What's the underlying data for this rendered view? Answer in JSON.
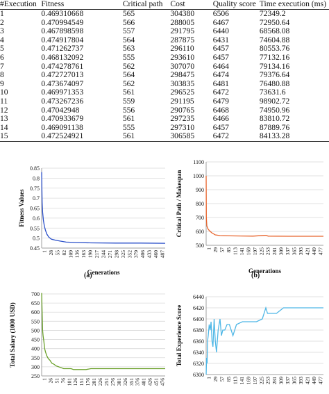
{
  "table": {
    "headers": [
      "#Execution",
      "Fitness",
      "Critical path",
      "Cost",
      "Quality score",
      "Time execution (ms)"
    ],
    "rows": [
      [
        "1",
        "0.469310668",
        "565",
        "304380",
        "6506",
        "72349.2"
      ],
      [
        "2",
        "0.470994549",
        "566",
        "288005",
        "6467",
        "72950.64"
      ],
      [
        "3",
        "0.467898598",
        "557",
        "291795",
        "6440",
        "68568.08"
      ],
      [
        "4",
        "0.474917804",
        "564",
        "287875",
        "6431",
        "74604.88"
      ],
      [
        "5",
        "0.471262737",
        "563",
        "296110",
        "6457",
        "80553.76"
      ],
      [
        "6",
        "0.468132092",
        "555",
        "293610",
        "6457",
        "77132.16"
      ],
      [
        "7",
        "0.474278761",
        "562",
        "307070",
        "6464",
        "79134.16"
      ],
      [
        "8",
        "0.472727013",
        "564",
        "298475",
        "6474",
        "79376.64"
      ],
      [
        "9",
        "0.473674097",
        "562",
        "303835",
        "6481",
        "76480.88"
      ],
      [
        "10",
        "0.469971353",
        "561",
        "296525",
        "6472",
        "73631.6"
      ],
      [
        "11",
        "0.473267236",
        "559",
        "291195",
        "6479",
        "98902.72"
      ],
      [
        "12",
        "0.47042948",
        "556",
        "290765",
        "6468",
        "74950.96"
      ],
      [
        "13",
        "0.470933679",
        "561",
        "297235",
        "6466",
        "83810.72"
      ],
      [
        "14",
        "0.469091138",
        "555",
        "297310",
        "6457",
        "87889.76"
      ],
      [
        "15",
        "0.472524921",
        "561",
        "306585",
        "6472",
        "84133.28"
      ]
    ]
  },
  "chart_data": [
    {
      "id": "a",
      "type": "line",
      "ylabel": "Fitness Values",
      "xlabel": "Generations",
      "caption": "(a)",
      "color": "#2a4fc9",
      "ylim": [
        0.45,
        0.85
      ],
      "yticks": [
        "0.45",
        "0.5",
        "0.55",
        "0.6",
        "0.65",
        "0.7",
        "0.75",
        "0.8",
        "0.85"
      ],
      "xticks": [
        "1",
        "28",
        "55",
        "82",
        "109",
        "136",
        "163",
        "190",
        "217",
        "244",
        "271",
        "298",
        "325",
        "352",
        "379",
        "406",
        "433",
        "460",
        "487"
      ],
      "xmax": 500,
      "points": [
        [
          1,
          0.83
        ],
        [
          2,
          0.74
        ],
        [
          3,
          0.68
        ],
        [
          5,
          0.63
        ],
        [
          8,
          0.59
        ],
        [
          12,
          0.56
        ],
        [
          16,
          0.54
        ],
        [
          22,
          0.52
        ],
        [
          30,
          0.505
        ],
        [
          40,
          0.495
        ],
        [
          55,
          0.49
        ],
        [
          75,
          0.485
        ],
        [
          100,
          0.48
        ],
        [
          140,
          0.478
        ],
        [
          200,
          0.476
        ],
        [
          300,
          0.475
        ],
        [
          400,
          0.475
        ],
        [
          500,
          0.474
        ]
      ]
    },
    {
      "id": "b",
      "type": "line",
      "ylabel": "Critical Path / Makespan",
      "xlabel": "Generations",
      "caption": "(b)",
      "color": "#e8642c",
      "ylim": [
        500,
        1100
      ],
      "yticks": [
        "500",
        "600",
        "700",
        "800",
        "900",
        "1000",
        "1100"
      ],
      "xticks": [
        "1",
        "29",
        "57",
        "85",
        "113",
        "141",
        "169",
        "197",
        "225",
        "253",
        "281",
        "309",
        "337",
        "365",
        "393",
        "421",
        "449",
        "477"
      ],
      "xmax": 500,
      "points": [
        [
          1,
          1000
        ],
        [
          2,
          700
        ],
        [
          4,
          640
        ],
        [
          8,
          620
        ],
        [
          15,
          605
        ],
        [
          25,
          590
        ],
        [
          40,
          575
        ],
        [
          60,
          570
        ],
        [
          100,
          568
        ],
        [
          150,
          567
        ],
        [
          200,
          566
        ],
        [
          255,
          572
        ],
        [
          265,
          566
        ],
        [
          350,
          565
        ],
        [
          420,
          565
        ],
        [
          500,
          565
        ]
      ]
    },
    {
      "id": "c",
      "type": "line",
      "ylabel": "Total Salary (1000 USD)",
      "xlabel": "Generations",
      "caption": "",
      "color": "#6aa02a",
      "ylim": [
        250,
        700
      ],
      "yticks": [
        "250",
        "300",
        "350",
        "400",
        "450",
        "500",
        "550",
        "600",
        "650",
        "700"
      ],
      "xticks": [
        "1",
        "26",
        "51",
        "76",
        "101",
        "126",
        "151",
        "176",
        "201",
        "226",
        "251",
        "276",
        "301",
        "326",
        "351",
        "376",
        "401",
        "426",
        "451",
        "476"
      ],
      "xmax": 500,
      "points": [
        [
          1,
          705
        ],
        [
          3,
          600
        ],
        [
          5,
          500
        ],
        [
          7,
          470
        ],
        [
          10,
          440
        ],
        [
          13,
          400
        ],
        [
          17,
          380
        ],
        [
          22,
          360
        ],
        [
          28,
          345
        ],
        [
          35,
          335
        ],
        [
          42,
          320
        ],
        [
          50,
          315
        ],
        [
          60,
          305
        ],
        [
          70,
          300
        ],
        [
          80,
          295
        ],
        [
          90,
          290
        ],
        [
          120,
          290
        ],
        [
          130,
          285
        ],
        [
          180,
          285
        ],
        [
          200,
          290
        ],
        [
          300,
          290
        ],
        [
          400,
          290
        ],
        [
          500,
          290
        ]
      ]
    },
    {
      "id": "d",
      "type": "line",
      "ylabel": "Total Experience Score",
      "xlabel": "Generations",
      "caption": "",
      "color": "#4fb7e6",
      "ylim": [
        6300,
        6440
      ],
      "yticks": [
        "6300",
        "6320",
        "6340",
        "6360",
        "6380",
        "6400",
        "6420",
        "6440"
      ],
      "xticks": [
        "1",
        "29",
        "57",
        "85",
        "113",
        "141",
        "169",
        "197",
        "225",
        "253",
        "281",
        "309",
        "337",
        "365",
        "393",
        "421",
        "449",
        "477"
      ],
      "xmax": 500,
      "points": [
        [
          1,
          6300
        ],
        [
          3,
          6330
        ],
        [
          5,
          6320
        ],
        [
          7,
          6360
        ],
        [
          10,
          6370
        ],
        [
          14,
          6390
        ],
        [
          18,
          6380
        ],
        [
          22,
          6395
        ],
        [
          26,
          6360
        ],
        [
          30,
          6350
        ],
        [
          35,
          6400
        ],
        [
          40,
          6360
        ],
        [
          45,
          6340
        ],
        [
          52,
          6380
        ],
        [
          60,
          6400
        ],
        [
          66,
          6370
        ],
        [
          72,
          6380
        ],
        [
          80,
          6380
        ],
        [
          90,
          6390
        ],
        [
          100,
          6390
        ],
        [
          115,
          6370
        ],
        [
          130,
          6390
        ],
        [
          155,
          6395
        ],
        [
          200,
          6395
        ],
        [
          215,
          6395
        ],
        [
          240,
          6400
        ],
        [
          255,
          6420
        ],
        [
          262,
          6410
        ],
        [
          300,
          6410
        ],
        [
          330,
          6420
        ],
        [
          400,
          6420
        ],
        [
          500,
          6420
        ]
      ]
    }
  ]
}
